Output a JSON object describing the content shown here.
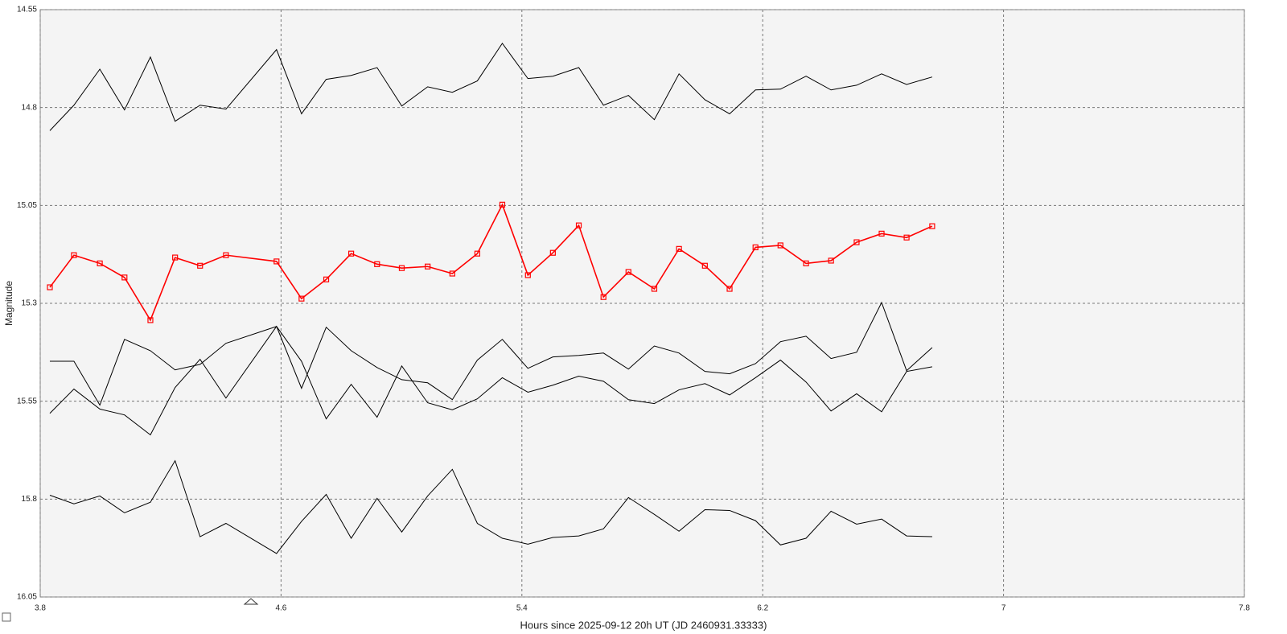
{
  "chart_data": {
    "type": "line",
    "x_label": "Hours since 2025-09-12 20h UT (JD 2460931.33333)",
    "y_label": "Magnitude",
    "x": [
      3.832,
      3.912,
      3.998,
      4.08,
      4.166,
      4.248,
      4.331,
      4.417,
      4.585,
      4.668,
      4.75,
      4.833,
      4.919,
      5.001,
      5.087,
      5.169,
      5.252,
      5.335,
      5.42,
      5.503,
      5.589,
      5.671,
      5.754,
      5.84,
      5.922,
      6.008,
      6.09,
      6.176,
      6.259,
      6.344,
      6.427,
      6.512,
      6.595,
      6.678,
      6.763
    ],
    "xlim": [
      3.8,
      7.8
    ],
    "xticks": [
      3.8,
      4.6,
      5.4,
      6.2,
      7,
      7.8
    ],
    "ylim": [
      16.05,
      14.55
    ],
    "yticks": [
      14.55,
      14.8,
      15.05,
      15.3,
      15.55,
      15.8,
      16.05
    ],
    "grid": true,
    "series": [
      {
        "color": "#000000",
        "values": [
          14.859,
          14.794,
          14.702,
          14.806,
          14.671,
          14.835,
          14.794,
          14.804,
          14.652,
          14.816,
          14.728,
          14.718,
          14.698,
          14.796,
          14.747,
          14.761,
          14.732,
          14.636,
          14.726,
          14.72,
          14.698,
          14.794,
          14.769,
          14.831,
          14.714,
          14.78,
          14.816,
          14.755,
          14.753,
          14.72,
          14.755,
          14.743,
          14.714,
          14.741,
          14.722
        ]
      },
      {
        "color": "#ff0000",
        "marker": "square",
        "values": [
          15.259,
          15.177,
          15.198,
          15.234,
          15.343,
          15.183,
          15.204,
          15.177,
          15.193,
          15.288,
          15.239,
          15.173,
          15.2,
          15.21,
          15.206,
          15.224,
          15.173,
          15.048,
          15.228,
          15.171,
          15.101,
          15.284,
          15.22,
          15.263,
          15.161,
          15.204,
          15.263,
          15.157,
          15.152,
          15.198,
          15.191,
          15.144,
          15.122,
          15.132,
          15.103
        ]
      },
      {
        "color": "#000000",
        "values": [
          15.448,
          15.448,
          15.56,
          15.392,
          15.421,
          15.47,
          15.456,
          15.402,
          15.359,
          15.448,
          15.595,
          15.507,
          15.591,
          15.46,
          15.554,
          15.572,
          15.544,
          15.49,
          15.527,
          15.509,
          15.486,
          15.499,
          15.546,
          15.556,
          15.521,
          15.505,
          15.534,
          15.49,
          15.445,
          15.501,
          15.575,
          15.531,
          15.577,
          15.474,
          15.462
        ]
      },
      {
        "color": "#000000",
        "values": [
          15.581,
          15.519,
          15.57,
          15.585,
          15.636,
          15.515,
          15.443,
          15.542,
          15.359,
          15.517,
          15.361,
          15.421,
          15.464,
          15.495,
          15.503,
          15.546,
          15.445,
          15.392,
          15.466,
          15.437,
          15.433,
          15.427,
          15.468,
          15.409,
          15.427,
          15.474,
          15.48,
          15.454,
          15.398,
          15.384,
          15.441,
          15.425,
          15.298,
          15.472,
          15.413
        ]
      },
      {
        "color": "#000000",
        "values": [
          15.79,
          15.812,
          15.792,
          15.835,
          15.808,
          15.702,
          15.896,
          15.862,
          15.939,
          15.857,
          15.788,
          15.9,
          15.798,
          15.884,
          15.792,
          15.724,
          15.862,
          15.9,
          15.915,
          15.898,
          15.894,
          15.876,
          15.796,
          15.839,
          15.882,
          15.827,
          15.829,
          15.855,
          15.917,
          15.9,
          15.831,
          15.864,
          15.851,
          15.894,
          15.896
        ]
      }
    ]
  }
}
